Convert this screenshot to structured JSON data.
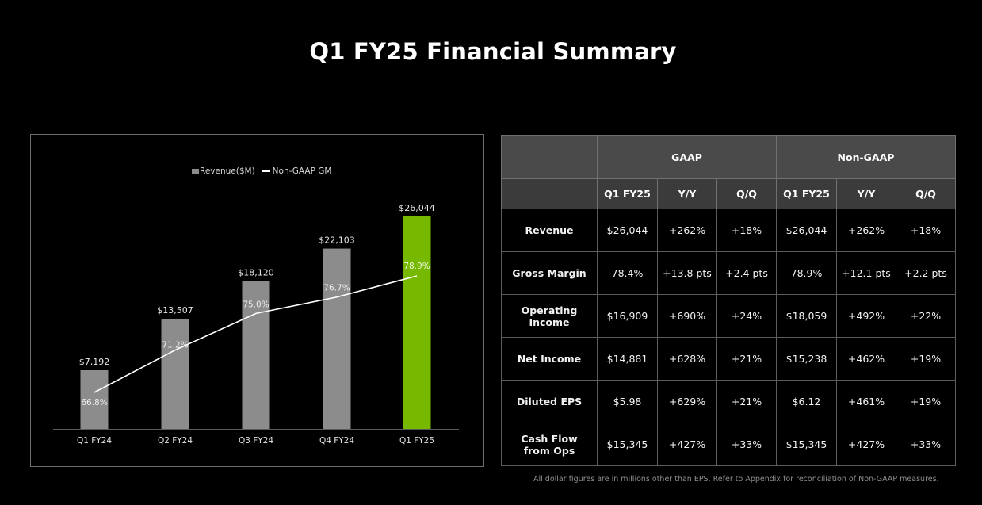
{
  "page": {
    "title": "Q1 FY25 Financial Summary"
  },
  "chart_data": {
    "type": "bar",
    "categories": [
      "Q1 FY24",
      "Q2 FY24",
      "Q3 FY24",
      "Q4 FY24",
      "Q1 FY25"
    ],
    "series": [
      {
        "name": "Revenue($M)",
        "kind": "bar",
        "values": [
          7192,
          13507,
          18120,
          22103,
          26044
        ],
        "labels": [
          "$7,192",
          "$13,507",
          "$18,120",
          "$22,103",
          "$26,044"
        ]
      },
      {
        "name": "Non-GAAP GM",
        "kind": "line",
        "values": [
          66.8,
          71.2,
          75.0,
          76.7,
          78.9
        ],
        "labels": [
          "66.8%",
          "71.2%",
          "75.0%",
          "76.7%",
          "78.9%"
        ]
      }
    ],
    "colors": {
      "bar": "#8c8c8c",
      "highlight_bar": "#76b900",
      "line": "#ffffff"
    },
    "highlight_index": 4,
    "legend_position": "top-center",
    "grid": false
  },
  "table": {
    "group_headers": [
      "GAAP",
      "Non-GAAP"
    ],
    "sub_headers": [
      "Q1 FY25",
      "Y/Y",
      "Q/Q",
      "Q1 FY25",
      "Y/Y",
      "Q/Q"
    ],
    "rows": [
      {
        "label": "Revenue",
        "cells": [
          "$26,044",
          "+262%",
          "+18%",
          "$26,044",
          "+262%",
          "+18%"
        ]
      },
      {
        "label": "Gross Margin",
        "cells": [
          "78.4%",
          "+13.8 pts",
          "+2.4 pts",
          "78.9%",
          "+12.1 pts",
          "+2.2 pts"
        ]
      },
      {
        "label": "Operating Income",
        "cells": [
          "$16,909",
          "+690%",
          "+24%",
          "$18,059",
          "+492%",
          "+22%"
        ]
      },
      {
        "label": "Net Income",
        "cells": [
          "$14,881",
          "+628%",
          "+21%",
          "$15,238",
          "+462%",
          "+19%"
        ]
      },
      {
        "label": "Diluted EPS",
        "cells": [
          "$5.98",
          "+629%",
          "+21%",
          "$6.12",
          "+461%",
          "+19%"
        ]
      },
      {
        "label": "Cash Flow from Ops",
        "cells": [
          "$15,345",
          "+427%",
          "+33%",
          "$15,345",
          "+427%",
          "+33%"
        ]
      }
    ]
  },
  "footnote": "All dollar figures are in millions other than EPS. Refer to Appendix for reconciliation of Non-GAAP measures."
}
